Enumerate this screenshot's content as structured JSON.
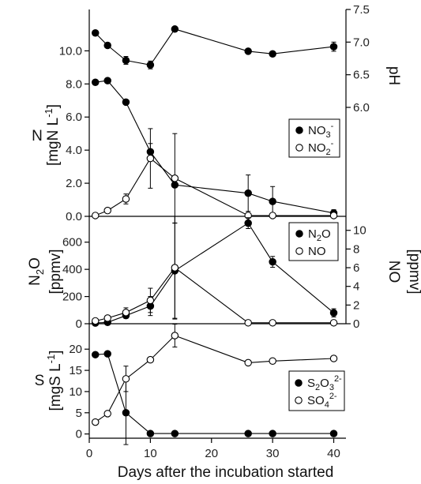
{
  "chart_data": [
    {
      "panel": "top",
      "type": "line",
      "ylabel": "N",
      "ylabel_units": "[mgN L",
      "ylabel_sup": "-1",
      "ylabel_close": "]",
      "ylim": [
        0,
        12.5
      ],
      "yticks": [
        "0.0",
        "2.0",
        "4.0",
        "6.0",
        "8.0",
        "10.0"
      ],
      "y2label": "pH",
      "y2lim": [
        6.0,
        7.5
      ],
      "y2ticks": [
        "6.0",
        "6.5",
        "7.0",
        "7.5"
      ],
      "legend_position": "right",
      "series": [
        {
          "name": "NO3-",
          "legend_main": "NO",
          "legend_sub": "3",
          "legend_sup": "-",
          "marker": "filled",
          "axis": "left",
          "x": [
            1,
            3,
            6,
            10,
            14,
            26,
            30,
            40
          ],
          "y": [
            8.1,
            8.2,
            6.9,
            3.9,
            1.9,
            1.4,
            0.9,
            0.2
          ],
          "err": [
            0,
            0,
            0,
            0.5,
            0,
            1.1,
            0.9,
            0.2
          ]
        },
        {
          "name": "NO2-",
          "legend_main": "NO",
          "legend_sub": "2",
          "legend_sup": "-",
          "marker": "open",
          "axis": "left",
          "x": [
            1,
            3,
            6,
            10,
            14,
            26,
            30,
            40
          ],
          "y": [
            0.05,
            0.35,
            1.05,
            3.5,
            2.3,
            0.05,
            0.05,
            0.05
          ],
          "err": [
            0,
            0,
            0.3,
            1.8,
            2.7,
            0,
            0,
            0
          ]
        },
        {
          "name": "pH",
          "marker": "filled",
          "axis": "right",
          "nolegend": true,
          "x": [
            1,
            3,
            6,
            10,
            14,
            26,
            30,
            40
          ],
          "y": [
            7.14,
            6.95,
            6.72,
            6.65,
            7.2,
            6.86,
            6.82,
            6.93
          ],
          "err": [
            0,
            0.03,
            0.06,
            0.06,
            0.03,
            0.03,
            0.03,
            0.07
          ]
        }
      ]
    },
    {
      "panel": "middle",
      "type": "line",
      "ylabel_main": "N",
      "ylabel_sub": "2",
      "ylabel_rest": "O",
      "ylabel_units": "[ppmv]",
      "ylim": [
        0,
        790
      ],
      "yticks": [
        "0",
        "200",
        "400",
        "600"
      ],
      "y2label": "NO",
      "y2label_units": "[ppmv]",
      "y2lim": [
        0,
        11.5
      ],
      "y2ticks": [
        "0",
        "2",
        "4",
        "6",
        "8",
        "10"
      ],
      "legend_position": "top-right",
      "series": [
        {
          "name": "N2O",
          "legend_main": "N",
          "legend_sub": "2",
          "legend_rest": "O",
          "marker": "filled",
          "axis": "left",
          "x": [
            1,
            3,
            6,
            10,
            14,
            26,
            30,
            40
          ],
          "y": [
            5,
            10,
            60,
            130,
            390,
            740,
            455,
            80
          ],
          "err": [
            0,
            0,
            20,
            70,
            350,
            40,
            40,
            30
          ]
        },
        {
          "name": "NO",
          "marker": "open",
          "axis": "right",
          "x": [
            1,
            3,
            6,
            10,
            14,
            26,
            30,
            40
          ],
          "y": [
            0.3,
            0.6,
            1.2,
            2.5,
            6.0,
            0.1,
            0.1,
            0.1
          ],
          "err": [
            0.15,
            0.2,
            0.5,
            1.3,
            5.5,
            0,
            0,
            0
          ]
        }
      ]
    },
    {
      "panel": "bottom",
      "type": "line",
      "ylabel": "S",
      "ylabel_units": "[mgS L",
      "ylabel_sup": "-1",
      "ylabel_close": "]",
      "ylim": [
        -1,
        26
      ],
      "yticks": [
        "0",
        "5",
        "10",
        "15",
        "20"
      ],
      "xlabel": "Days after the incubation started",
      "xlim": [
        0,
        42
      ],
      "xticks": [
        "0",
        "10",
        "20",
        "30",
        "40"
      ],
      "legend_position": "bottom-right",
      "series": [
        {
          "name": "S2O32-",
          "legend_main": "S",
          "legend_sub": "2",
          "legend_rest": "O",
          "legend_sub2": "3",
          "legend_sup": "2-",
          "marker": "filled",
          "x": [
            1,
            3,
            6,
            10,
            14,
            26,
            30,
            40
          ],
          "y": [
            18.7,
            18.9,
            5.0,
            0.1,
            0.1,
            0.1,
            0.1,
            0.1
          ],
          "err": [
            0,
            0,
            7.5,
            0,
            0,
            0,
            0,
            0
          ]
        },
        {
          "name": "SO42-",
          "legend_main": "SO",
          "legend_sub": "4",
          "legend_sup": "2-",
          "marker": "open",
          "x": [
            1,
            3,
            6,
            10,
            14,
            26,
            30,
            40
          ],
          "y": [
            2.8,
            4.8,
            13.0,
            17.5,
            23.2,
            16.8,
            17.2,
            17.8
          ],
          "err": [
            0,
            0,
            3.0,
            0,
            2.7,
            0,
            0,
            0
          ]
        }
      ]
    }
  ]
}
